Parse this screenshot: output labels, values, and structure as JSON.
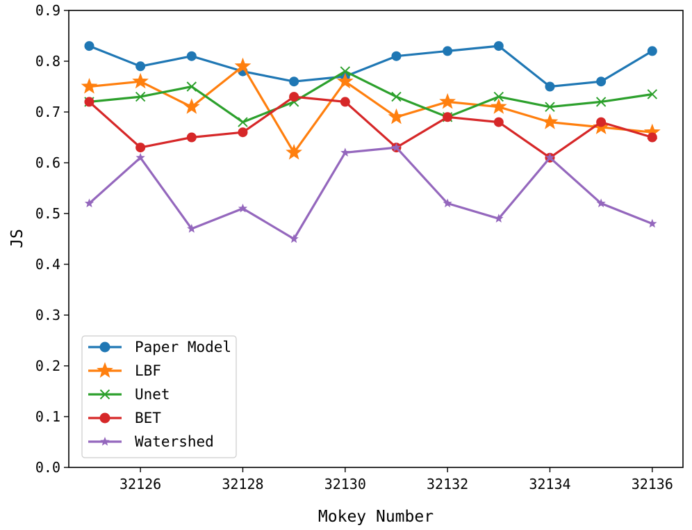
{
  "chart_data": {
    "type": "line",
    "xlabel": "Mokey Number",
    "ylabel": "JS",
    "x": [
      32125,
      32126,
      32127,
      32128,
      32129,
      32130,
      32131,
      32132,
      32133,
      32134,
      32135,
      32136
    ],
    "xticks": [
      "32126",
      "32128",
      "32130",
      "32132",
      "32134",
      "32136"
    ],
    "yticks": [
      "0.0",
      "0.1",
      "0.2",
      "0.3",
      "0.4",
      "0.5",
      "0.6",
      "0.7",
      "0.8",
      "0.9"
    ],
    "xlim": [
      32124.6,
      32136.6
    ],
    "ylim": [
      0.0,
      0.9
    ],
    "grid": false,
    "legend_position": "lower-left",
    "series": [
      {
        "name": "Paper Model",
        "color": "#1f77b4",
        "marker": "circle",
        "values": [
          0.83,
          0.79,
          0.81,
          0.78,
          0.76,
          0.77,
          0.81,
          0.82,
          0.83,
          0.75,
          0.76,
          0.82
        ]
      },
      {
        "name": "LBF",
        "color": "#ff7f0e",
        "marker": "star",
        "values": [
          0.75,
          0.76,
          0.71,
          0.79,
          0.62,
          0.76,
          0.69,
          0.72,
          0.71,
          0.68,
          0.67,
          0.66
        ]
      },
      {
        "name": "Unet",
        "color": "#2ca02c",
        "marker": "x",
        "values": [
          0.72,
          0.73,
          0.75,
          0.68,
          0.72,
          0.78,
          0.73,
          0.69,
          0.73,
          0.71,
          0.72,
          0.735
        ]
      },
      {
        "name": "BET",
        "color": "#d62728",
        "marker": "circle",
        "values": [
          0.72,
          0.63,
          0.65,
          0.66,
          0.73,
          0.72,
          0.63,
          0.69,
          0.68,
          0.61,
          0.68,
          0.65
        ]
      },
      {
        "name": "Watershed",
        "color": "#9467bd",
        "marker": "smallstar",
        "values": [
          0.52,
          0.61,
          0.47,
          0.51,
          0.45,
          0.62,
          0.63,
          0.52,
          0.49,
          0.61,
          0.52,
          0.48
        ]
      }
    ]
  }
}
